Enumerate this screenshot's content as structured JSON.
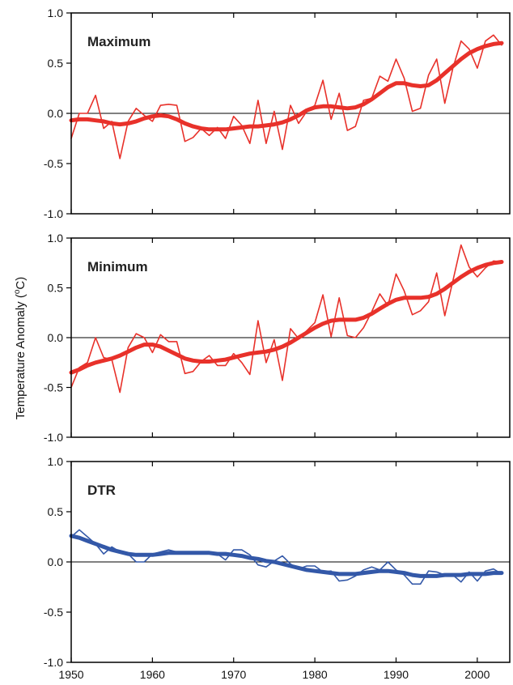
{
  "chart_data": {
    "type": "line",
    "ylabel_parts": {
      "before": "Temperature Anomaly  (",
      "sup": "o",
      "after": "C)"
    },
    "x_ticks": [
      1950,
      1960,
      1970,
      1980,
      1990,
      2000
    ],
    "xlim": [
      1950,
      2004
    ],
    "ylim": [
      -1.0,
      1.0
    ],
    "y_ticks": [
      "1.0",
      "0.5",
      "0.0",
      "-0.5",
      "-1.0"
    ],
    "y_tick_values": [
      1.0,
      0.5,
      0.0,
      -0.5,
      -1.0
    ],
    "zero_line": true,
    "panels": [
      {
        "title": "Maximum",
        "color": "#e8312a",
        "series": [
          {
            "style": "annual",
            "x": [
              1950,
              1951,
              1952,
              1953,
              1954,
              1955,
              1956,
              1957,
              1958,
              1959,
              1960,
              1961,
              1962,
              1963,
              1964,
              1965,
              1966,
              1967,
              1968,
              1969,
              1970,
              1971,
              1972,
              1973,
              1974,
              1975,
              1976,
              1977,
              1978,
              1979,
              1980,
              1981,
              1982,
              1983,
              1984,
              1985,
              1986,
              1987,
              1988,
              1989,
              1990,
              1991,
              1992,
              1993,
              1994,
              1995,
              1996,
              1997,
              1998,
              1999,
              2000,
              2001,
              2002,
              2003
            ],
            "y": [
              -0.25,
              0.0,
              0.0,
              0.18,
              -0.15,
              -0.08,
              -0.45,
              -0.08,
              0.05,
              -0.02,
              -0.08,
              0.08,
              0.09,
              0.08,
              -0.28,
              -0.24,
              -0.15,
              -0.22,
              -0.14,
              -0.25,
              -0.03,
              -0.12,
              -0.3,
              0.13,
              -0.3,
              0.02,
              -0.36,
              0.08,
              -0.1,
              0.02,
              0.08,
              0.33,
              -0.06,
              0.2,
              -0.17,
              -0.13,
              0.13,
              0.15,
              0.37,
              0.32,
              0.54,
              0.35,
              0.02,
              0.05,
              0.38,
              0.54,
              0.1,
              0.45,
              0.72,
              0.64,
              0.45,
              0.72,
              0.78,
              0.68
            ]
          },
          {
            "style": "smoothed",
            "x": [
              1950,
              1951,
              1952,
              1953,
              1954,
              1955,
              1956,
              1957,
              1958,
              1959,
              1960,
              1961,
              1962,
              1963,
              1964,
              1965,
              1966,
              1967,
              1968,
              1969,
              1970,
              1971,
              1972,
              1973,
              1974,
              1975,
              1976,
              1977,
              1978,
              1979,
              1980,
              1981,
              1982,
              1983,
              1984,
              1985,
              1986,
              1987,
              1988,
              1989,
              1990,
              1991,
              1992,
              1993,
              1994,
              1995,
              1996,
              1997,
              1998,
              1999,
              2000,
              2001,
              2002,
              2003
            ],
            "y": [
              -0.07,
              -0.06,
              -0.06,
              -0.07,
              -0.08,
              -0.1,
              -0.11,
              -0.1,
              -0.08,
              -0.05,
              -0.03,
              -0.02,
              -0.03,
              -0.06,
              -0.1,
              -0.13,
              -0.15,
              -0.16,
              -0.16,
              -0.16,
              -0.15,
              -0.14,
              -0.13,
              -0.13,
              -0.12,
              -0.11,
              -0.09,
              -0.06,
              -0.02,
              0.03,
              0.06,
              0.07,
              0.07,
              0.06,
              0.05,
              0.06,
              0.09,
              0.14,
              0.2,
              0.26,
              0.3,
              0.3,
              0.28,
              0.27,
              0.28,
              0.33,
              0.4,
              0.47,
              0.54,
              0.6,
              0.64,
              0.67,
              0.69,
              0.7
            ]
          }
        ]
      },
      {
        "title": "Minimum",
        "color": "#e8312a",
        "series": [
          {
            "style": "annual",
            "x": [
              1950,
              1951,
              1952,
              1953,
              1954,
              1955,
              1956,
              1957,
              1958,
              1959,
              1960,
              1961,
              1962,
              1963,
              1964,
              1965,
              1966,
              1967,
              1968,
              1969,
              1970,
              1971,
              1972,
              1973,
              1974,
              1975,
              1976,
              1977,
              1978,
              1979,
              1980,
              1981,
              1982,
              1983,
              1984,
              1985,
              1986,
              1987,
              1988,
              1989,
              1990,
              1991,
              1992,
              1993,
              1994,
              1995,
              1996,
              1997,
              1998,
              1999,
              2000,
              2001,
              2002,
              2003
            ],
            "y": [
              -0.5,
              -0.3,
              -0.25,
              0.0,
              -0.2,
              -0.22,
              -0.55,
              -0.1,
              0.04,
              0.0,
              -0.15,
              0.03,
              -0.04,
              -0.04,
              -0.36,
              -0.34,
              -0.24,
              -0.18,
              -0.28,
              -0.28,
              -0.16,
              -0.25,
              -0.37,
              0.17,
              -0.25,
              -0.02,
              -0.43,
              0.09,
              -0.01,
              0.07,
              0.15,
              0.43,
              0.01,
              0.4,
              0.02,
              0.0,
              0.1,
              0.26,
              0.44,
              0.32,
              0.64,
              0.47,
              0.23,
              0.27,
              0.36,
              0.65,
              0.22,
              0.57,
              0.93,
              0.71,
              0.61,
              0.7,
              0.77,
              0.76
            ]
          },
          {
            "style": "smoothed",
            "x": [
              1950,
              1951,
              1952,
              1953,
              1954,
              1955,
              1956,
              1957,
              1958,
              1959,
              1960,
              1961,
              1962,
              1963,
              1964,
              1965,
              1966,
              1967,
              1968,
              1969,
              1970,
              1971,
              1972,
              1973,
              1974,
              1975,
              1976,
              1977,
              1978,
              1979,
              1980,
              1981,
              1982,
              1983,
              1984,
              1985,
              1986,
              1987,
              1988,
              1989,
              1990,
              1991,
              1992,
              1993,
              1994,
              1995,
              1996,
              1997,
              1998,
              1999,
              2000,
              2001,
              2002,
              2003
            ],
            "y": [
              -0.35,
              -0.32,
              -0.28,
              -0.25,
              -0.23,
              -0.21,
              -0.18,
              -0.14,
              -0.1,
              -0.07,
              -0.07,
              -0.09,
              -0.13,
              -0.17,
              -0.21,
              -0.23,
              -0.24,
              -0.24,
              -0.23,
              -0.22,
              -0.2,
              -0.18,
              -0.16,
              -0.15,
              -0.14,
              -0.12,
              -0.09,
              -0.05,
              0.0,
              0.05,
              0.1,
              0.14,
              0.17,
              0.18,
              0.18,
              0.18,
              0.2,
              0.24,
              0.29,
              0.34,
              0.38,
              0.4,
              0.4,
              0.4,
              0.41,
              0.44,
              0.49,
              0.55,
              0.61,
              0.66,
              0.7,
              0.73,
              0.75,
              0.76
            ]
          }
        ]
      },
      {
        "title": "DTR",
        "color": "#3358a8",
        "series": [
          {
            "style": "annual",
            "x": [
              1950,
              1951,
              1952,
              1953,
              1954,
              1955,
              1956,
              1957,
              1958,
              1959,
              1960,
              1961,
              1962,
              1963,
              1964,
              1965,
              1966,
              1967,
              1968,
              1969,
              1970,
              1971,
              1972,
              1973,
              1974,
              1975,
              1976,
              1977,
              1978,
              1979,
              1980,
              1981,
              1982,
              1983,
              1984,
              1985,
              1986,
              1987,
              1988,
              1989,
              1990,
              1991,
              1992,
              1993,
              1994,
              1995,
              1996,
              1997,
              1998,
              1999,
              2000,
              2001,
              2002,
              2003
            ],
            "y": [
              0.25,
              0.32,
              0.25,
              0.18,
              0.08,
              0.15,
              0.1,
              0.08,
              0.0,
              0.0,
              0.08,
              0.1,
              0.12,
              0.1,
              0.08,
              0.1,
              0.1,
              0.09,
              0.08,
              0.02,
              0.12,
              0.12,
              0.07,
              -0.03,
              -0.05,
              0.01,
              0.06,
              -0.02,
              -0.07,
              -0.04,
              -0.04,
              -0.1,
              -0.09,
              -0.19,
              -0.18,
              -0.14,
              -0.08,
              -0.05,
              -0.08,
              0.0,
              -0.08,
              -0.13,
              -0.22,
              -0.22,
              -0.09,
              -0.1,
              -0.13,
              -0.13,
              -0.2,
              -0.1,
              -0.19,
              -0.09,
              -0.07,
              -0.12
            ]
          },
          {
            "style": "smoothed",
            "x": [
              1950,
              1951,
              1952,
              1953,
              1954,
              1955,
              1956,
              1957,
              1958,
              1959,
              1960,
              1961,
              1962,
              1963,
              1964,
              1965,
              1966,
              1967,
              1968,
              1969,
              1970,
              1971,
              1972,
              1973,
              1974,
              1975,
              1976,
              1977,
              1978,
              1979,
              1980,
              1981,
              1982,
              1983,
              1984,
              1985,
              1986,
              1987,
              1988,
              1989,
              1990,
              1991,
              1992,
              1993,
              1994,
              1995,
              1996,
              1997,
              1998,
              1999,
              2000,
              2001,
              2002,
              2003
            ],
            "y": [
              0.26,
              0.24,
              0.21,
              0.18,
              0.15,
              0.12,
              0.1,
              0.08,
              0.07,
              0.07,
              0.07,
              0.08,
              0.09,
              0.09,
              0.09,
              0.09,
              0.09,
              0.09,
              0.08,
              0.08,
              0.07,
              0.06,
              0.04,
              0.03,
              0.01,
              0.0,
              -0.02,
              -0.04,
              -0.06,
              -0.08,
              -0.09,
              -0.1,
              -0.11,
              -0.12,
              -0.12,
              -0.12,
              -0.11,
              -0.1,
              -0.09,
              -0.09,
              -0.1,
              -0.11,
              -0.13,
              -0.14,
              -0.14,
              -0.14,
              -0.13,
              -0.13,
              -0.13,
              -0.12,
              -0.12,
              -0.12,
              -0.11,
              -0.11
            ]
          }
        ]
      }
    ]
  }
}
